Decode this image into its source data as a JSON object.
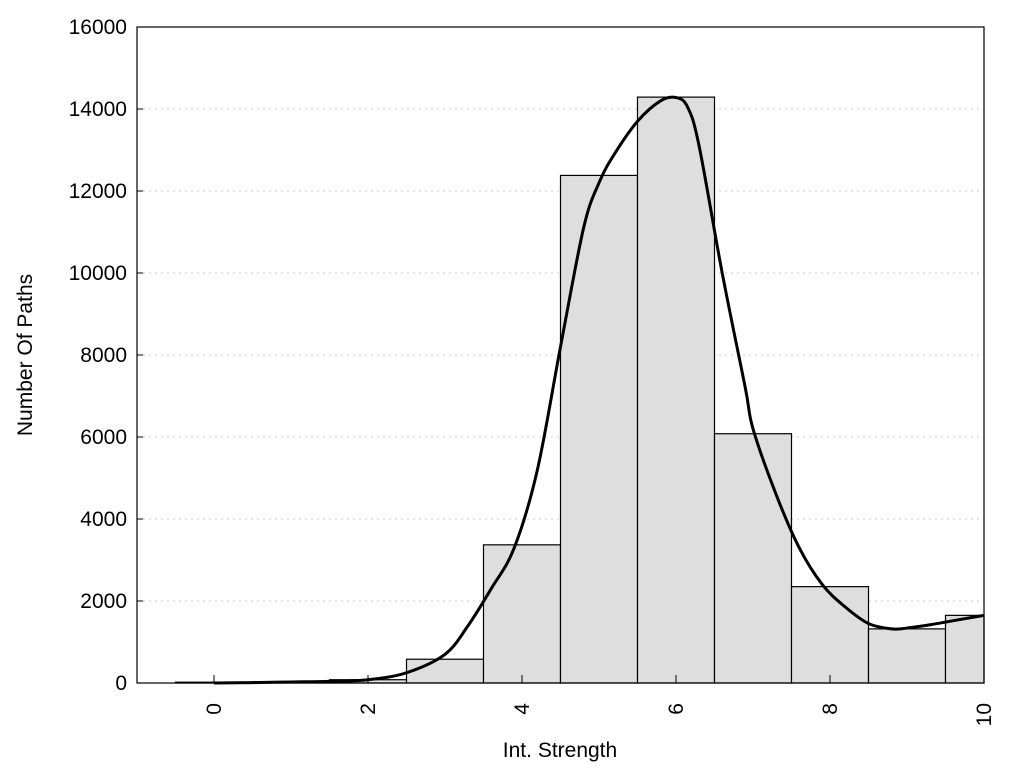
{
  "chart_data": {
    "type": "bar",
    "title": "",
    "xlabel": "Int. Strength",
    "ylabel": "Number Of Paths",
    "xlim": [
      -1,
      10
    ],
    "ylim": [
      0,
      16000
    ],
    "grid": "horizontal dotted",
    "x_ticks": [
      0,
      2,
      4,
      6,
      8,
      10
    ],
    "y_ticks": [
      0,
      2000,
      4000,
      6000,
      8000,
      10000,
      12000,
      14000,
      16000
    ],
    "bars": {
      "x": [
        0,
        1,
        2,
        3,
        4,
        5,
        6,
        7,
        8,
        9,
        10
      ],
      "values": [
        20,
        30,
        80,
        580,
        3370,
        12380,
        14290,
        6080,
        2350,
        1320,
        1650
      ]
    },
    "fit_curve": {
      "x": [
        0,
        0.5,
        1,
        1.5,
        2,
        2.5,
        3,
        3.3,
        3.6,
        3.9,
        4.2,
        4.5,
        4.8,
        5,
        5.2,
        5.5,
        5.8,
        6,
        6.15,
        6.3,
        6.6,
        6.9,
        7,
        7.3,
        7.6,
        7.9,
        8.2,
        8.5,
        8.8,
        9,
        9.3,
        9.6,
        10
      ],
      "y": [
        0,
        10,
        25,
        40,
        80,
        250,
        700,
        1400,
        2300,
        3300,
        5200,
        8200,
        11100,
        12200,
        12900,
        13700,
        14200,
        14280,
        14050,
        13100,
        10000,
        7200,
        6200,
        4600,
        3300,
        2400,
        1850,
        1450,
        1320,
        1340,
        1420,
        1520,
        1650
      ]
    }
  }
}
